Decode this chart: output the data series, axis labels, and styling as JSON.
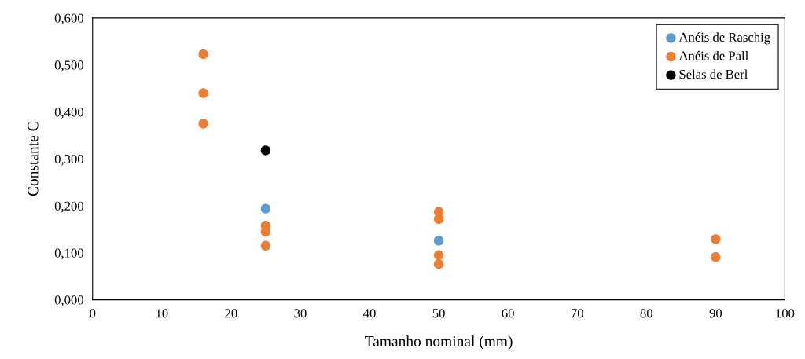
{
  "chart_data": {
    "type": "scatter",
    "xlabel": "Tamanho nominal (mm)",
    "ylabel": "Constante C",
    "series": [
      {
        "name": "Anéis de Raschig",
        "color": "#5b9bd5",
        "x": [
          25,
          50
        ],
        "values": [
          0.194,
          0.126
        ]
      },
      {
        "name": "Anéis de Pall",
        "color": "#ed7d31",
        "x": [
          16,
          16,
          16,
          25,
          25,
          25,
          50,
          50,
          50,
          50,
          90,
          90
        ],
        "values": [
          0.523,
          0.44,
          0.375,
          0.158,
          0.145,
          0.115,
          0.187,
          0.172,
          0.095,
          0.076,
          0.129,
          0.091
        ]
      },
      {
        "name": "Selas de Berl",
        "color": "#000000",
        "x": [
          25
        ],
        "values": [
          0.318
        ]
      }
    ],
    "xlim": [
      0,
      100
    ],
    "xticks": [
      0,
      10,
      20,
      30,
      40,
      50,
      60,
      70,
      80,
      90,
      100
    ],
    "ylim": [
      0,
      0.6
    ],
    "yticks": [
      {
        "value": 0,
        "label": "0,000"
      },
      {
        "value": 0.1,
        "label": "0,100"
      },
      {
        "value": 0.2,
        "label": "0,200"
      },
      {
        "value": 0.3,
        "label": "0,300"
      },
      {
        "value": 0.4,
        "label": "0,400"
      },
      {
        "value": 0.5,
        "label": "0,500"
      },
      {
        "value": 0.6,
        "label": "0,600"
      }
    ],
    "grid": false,
    "legend": "top right",
    "marker": "circle"
  }
}
